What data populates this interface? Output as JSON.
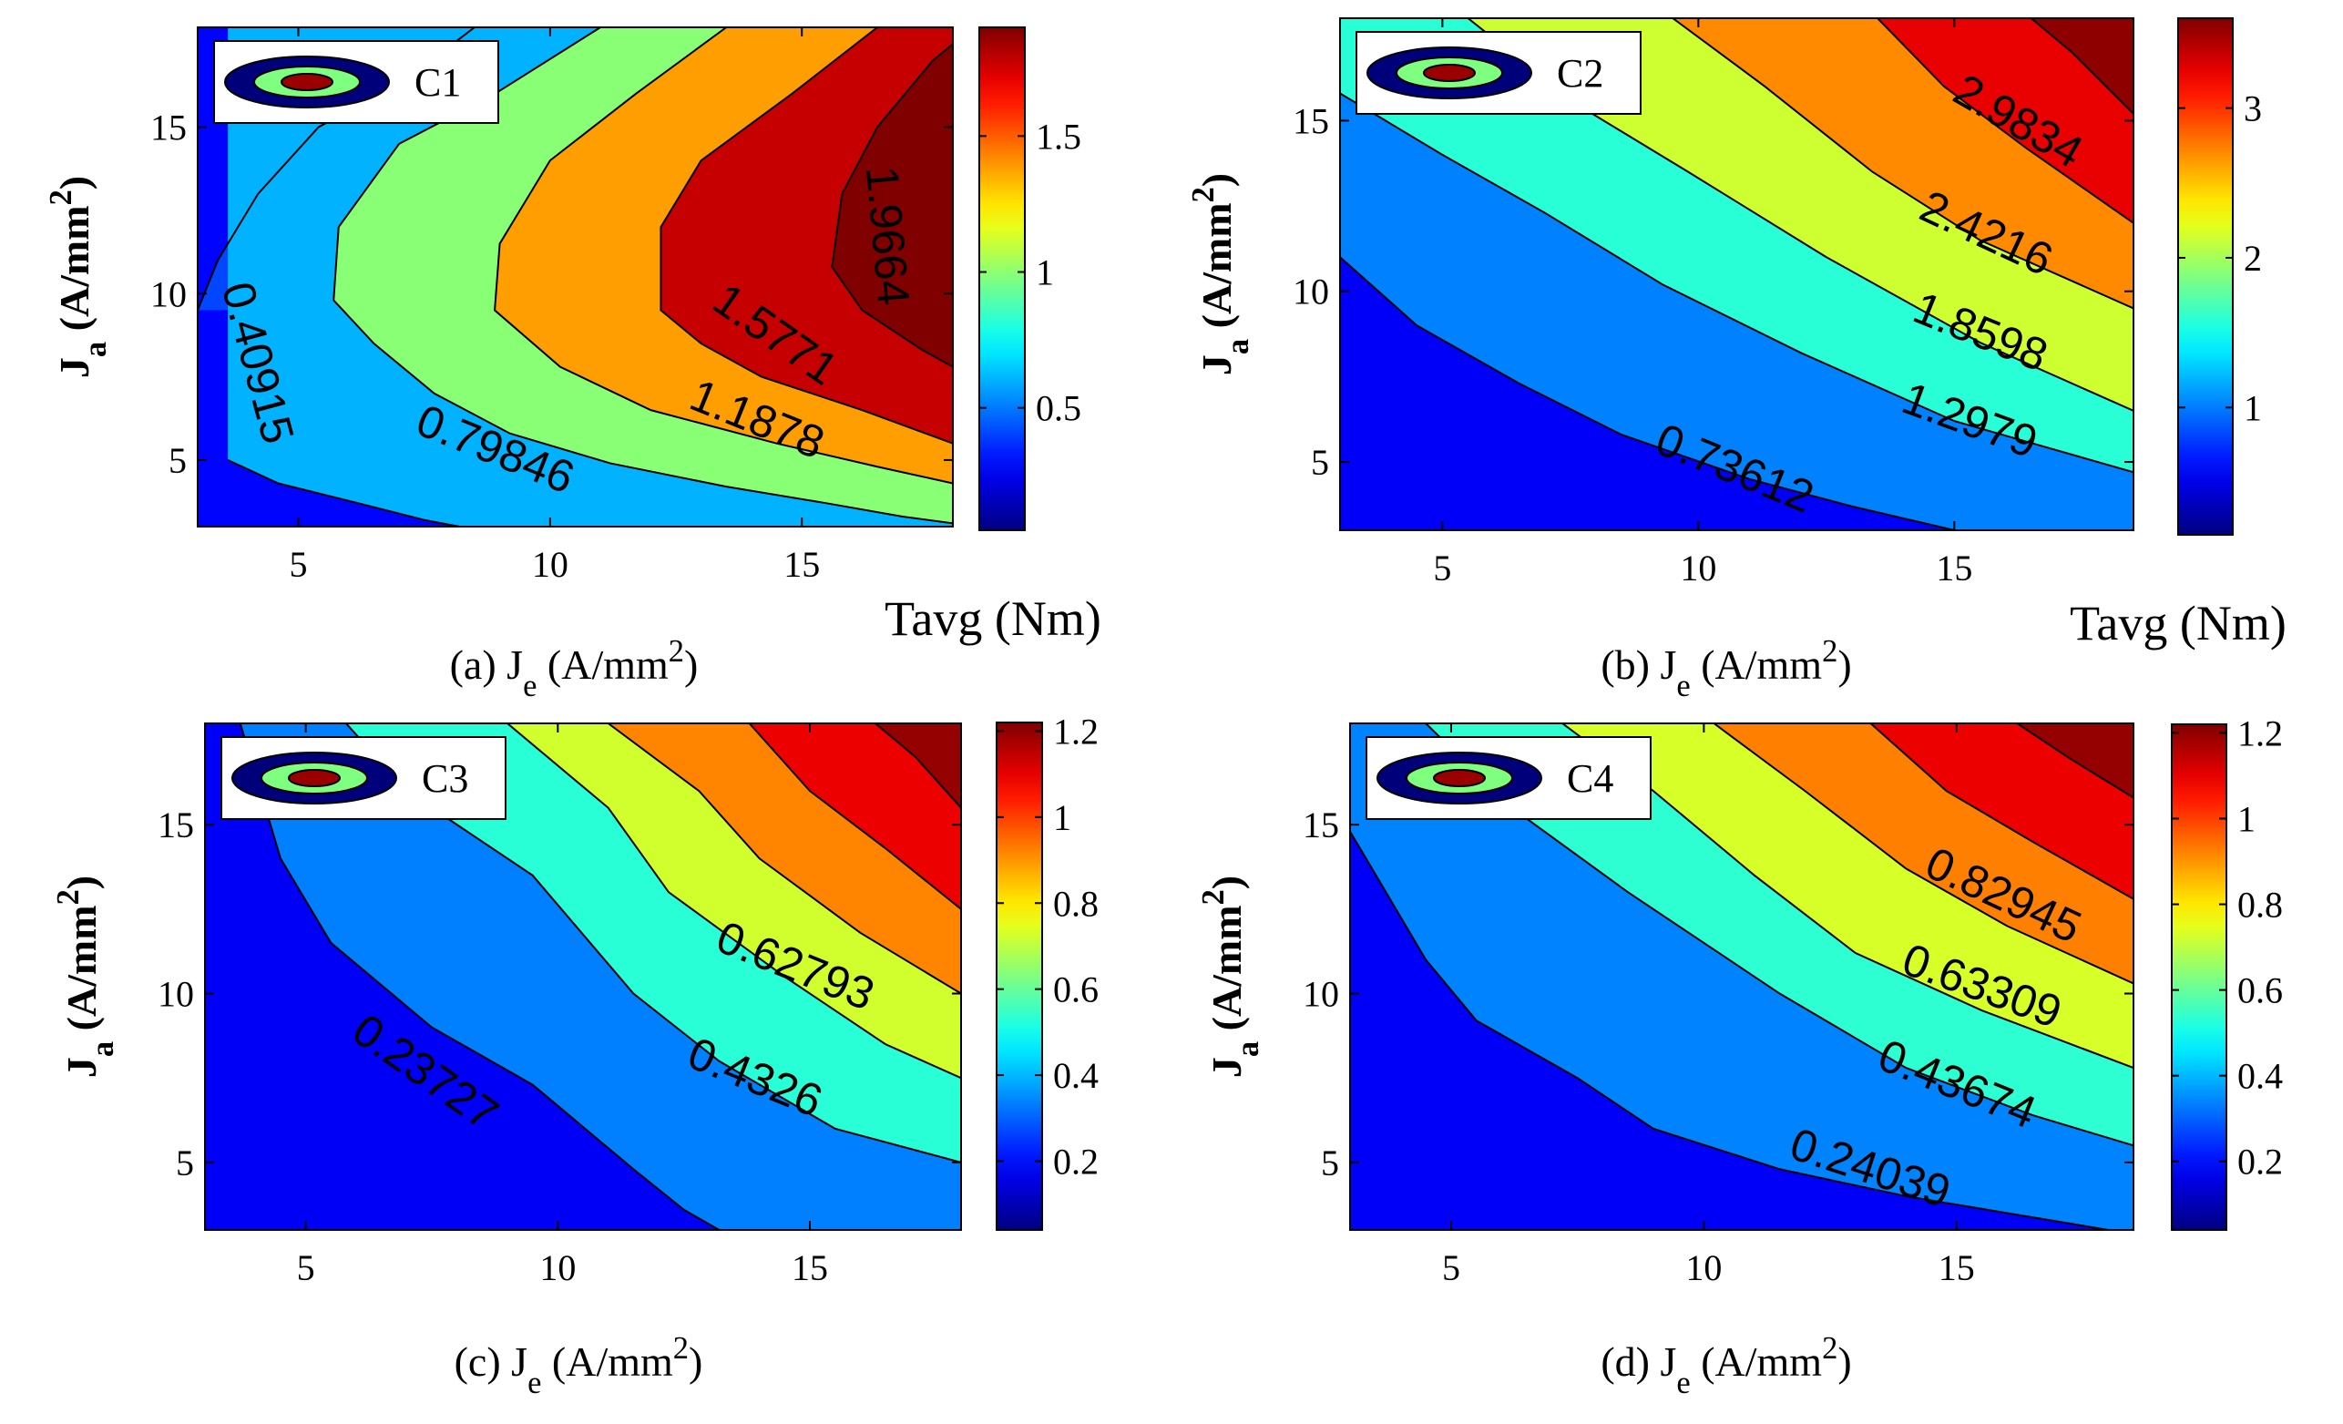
{
  "shared_title": "Tavg (Nm)",
  "chart_data": [
    {
      "type": "contour",
      "panel": "(a)",
      "caption": "(a) J_e (A/mm^2)",
      "xlabel": "J_e (A/mm^2)",
      "ylabel": "J_a (A/mm^2)",
      "colorbar_title": "Tavg (Nm)",
      "xlim": [
        3,
        18
      ],
      "ylim": [
        3,
        18
      ],
      "xticks": [
        5,
        10,
        15
      ],
      "yticks": [
        5,
        10,
        15
      ],
      "clim": [
        0.05,
        1.9
      ],
      "colorbar_ticks": [
        0.5,
        1,
        1.5
      ],
      "legend": "C1",
      "levels": [
        0.40915,
        0.79846,
        1.1878,
        1.5771,
        1.9664
      ],
      "contour_labels": [
        "0.40915",
        "0.79846",
        "1.1878",
        "1.5771",
        "1.9664"
      ],
      "contours": [
        {
          "level": 0.40915,
          "points": [
            [
              8.5,
              18
            ],
            [
              7.2,
              16.5
            ],
            [
              5.4,
              15
            ],
            [
              4.2,
              13
            ],
            [
              3.4,
              11
            ],
            [
              3,
              9.5
            ]
          ]
        },
        {
          "level": 0.40915,
          "points": [
            [
              3.6,
              5
            ],
            [
              4.6,
              4.3
            ],
            [
              6.2,
              3.7
            ],
            [
              7.5,
              3.2
            ],
            [
              8.2,
              3
            ]
          ]
        },
        {
          "level": 0.79846,
          "points": [
            [
              11,
              18
            ],
            [
              8.9,
              16
            ],
            [
              7,
              14.5
            ],
            [
              5.8,
              12
            ],
            [
              5.7,
              9.8
            ],
            [
              6.5,
              8.5
            ],
            [
              7.7,
              7
            ],
            [
              9.2,
              5.8
            ],
            [
              11.2,
              4.9
            ],
            [
              13.5,
              4.2
            ],
            [
              15.5,
              3.7
            ],
            [
              17,
              3.3
            ],
            [
              18,
              3.1
            ]
          ]
        },
        {
          "level": 1.1878,
          "points": [
            [
              13.5,
              18
            ],
            [
              11.7,
              16
            ],
            [
              10,
              14
            ],
            [
              9,
              11.5
            ],
            [
              8.9,
              9.5
            ],
            [
              10.2,
              7.8
            ],
            [
              12,
              6.5
            ],
            [
              14.5,
              5.5
            ],
            [
              16.5,
              4.8
            ],
            [
              18,
              4.3
            ]
          ]
        },
        {
          "level": 1.5771,
          "points": [
            [
              16.5,
              18
            ],
            [
              14.8,
              16
            ],
            [
              13,
              14
            ],
            [
              12.2,
              12
            ],
            [
              12.2,
              9.5
            ],
            [
              13,
              8.5
            ],
            [
              14.2,
              7.5
            ],
            [
              16.2,
              6.5
            ],
            [
              18,
              5.5
            ]
          ]
        },
        {
          "level": 1.9664,
          "points": [
            [
              18,
              17.5
            ],
            [
              17.6,
              17
            ],
            [
              16.5,
              15
            ],
            [
              15.8,
              13
            ],
            [
              15.6,
              10.8
            ],
            [
              16.2,
              9.5
            ],
            [
              17.4,
              8.3
            ],
            [
              18,
              7.8
            ]
          ]
        }
      ]
    },
    {
      "type": "contour",
      "panel": "(b)",
      "caption": "(b) J_e (A/mm^2)",
      "xlabel": "J_e (A/mm^2)",
      "ylabel": "J_a (A/mm^2)",
      "colorbar_title": "Tavg (Nm)",
      "xlim": [
        3,
        18.5
      ],
      "ylim": [
        3,
        18
      ],
      "xticks": [
        5,
        10,
        15
      ],
      "yticks": [
        5,
        10,
        15
      ],
      "clim": [
        0.15,
        3.6
      ],
      "colorbar_ticks": [
        1,
        2,
        3
      ],
      "legend": "C2",
      "levels": [
        0.73612,
        1.2979,
        1.8598,
        2.4216,
        2.9834
      ],
      "contour_labels": [
        "0.73612",
        "1.2979",
        "1.8598",
        "2.4216",
        "2.9834"
      ],
      "contours": [
        {
          "level": 0.73612,
          "points": [
            [
              3,
              11
            ],
            [
              4.5,
              9
            ],
            [
              6.5,
              7.3
            ],
            [
              8.5,
              5.8
            ],
            [
              11,
              4.5
            ],
            [
              13,
              3.7
            ],
            [
              15,
              3
            ]
          ]
        },
        {
          "level": 1.2979,
          "points": [
            [
              3,
              15.8
            ],
            [
              5,
              14
            ],
            [
              7,
              12.3
            ],
            [
              9.3,
              10.2
            ],
            [
              12,
              8.2
            ],
            [
              15,
              6.2
            ],
            [
              18.5,
              4.7
            ]
          ]
        },
        {
          "level": 1.8598,
          "points": [
            [
              5.5,
              18
            ],
            [
              7.6,
              15.5
            ],
            [
              9.8,
              13.5
            ],
            [
              12.5,
              11
            ],
            [
              15.5,
              8.5
            ],
            [
              18.5,
              6.5
            ]
          ]
        },
        {
          "level": 2.4216,
          "points": [
            [
              9.5,
              18
            ],
            [
              11.3,
              16
            ],
            [
              13.4,
              13.5
            ],
            [
              15.5,
              11.5
            ],
            [
              18.5,
              9.5
            ]
          ]
        },
        {
          "level": 2.9834,
          "points": [
            [
              13.5,
              18
            ],
            [
              14.8,
              16
            ],
            [
              16.4,
              14.2
            ],
            [
              18.5,
              12
            ]
          ]
        },
        {
          "level": 3.5,
          "points": [
            [
              16.5,
              18
            ],
            [
              17.3,
              17
            ],
            [
              18.5,
              15.2
            ]
          ]
        }
      ]
    },
    {
      "type": "contour",
      "panel": "(c)",
      "caption": "(c) J_e (A/mm^2)",
      "xlabel": "J_e (A/mm^2)",
      "ylabel": "J_a (A/mm^2)",
      "colorbar_title": "",
      "xlim": [
        3,
        18
      ],
      "ylim": [
        3,
        18
      ],
      "xticks": [
        5,
        10,
        15
      ],
      "yticks": [
        5,
        10,
        15
      ],
      "clim": [
        0.04,
        1.22
      ],
      "colorbar_ticks": [
        0.2,
        0.4,
        0.6,
        0.8,
        1,
        1.2
      ],
      "legend": "C3",
      "levels": [
        0.23727,
        0.4326,
        0.62793,
        0.82,
        1.02,
        1.17
      ],
      "contour_labels": [
        "0.23727",
        "0.4326",
        "0.62793"
      ],
      "contours": [
        {
          "level": 0.23727,
          "points": [
            [
              3.7,
              18
            ],
            [
              4.5,
              14
            ],
            [
              5.5,
              11.5
            ],
            [
              7.5,
              9
            ],
            [
              9.5,
              7.3
            ],
            [
              11.5,
              4.8
            ],
            [
              12.5,
              3.6
            ],
            [
              13.2,
              3
            ]
          ]
        },
        {
          "level": 0.4326,
          "points": [
            [
              5.8,
              18
            ],
            [
              7,
              16
            ],
            [
              9.5,
              13.5
            ],
            [
              11.5,
              10
            ],
            [
              13.2,
              8
            ],
            [
              15.5,
              6
            ],
            [
              18,
              5
            ]
          ]
        },
        {
          "level": 0.62793,
          "points": [
            [
              9,
              18
            ],
            [
              11,
              15.5
            ],
            [
              12.2,
              13
            ],
            [
              14.5,
              10.5
            ],
            [
              16.5,
              8.5
            ],
            [
              18,
              7.5
            ]
          ]
        },
        {
          "level": 0.82,
          "points": [
            [
              11,
              18
            ],
            [
              12.8,
              16
            ],
            [
              14,
              14
            ],
            [
              16,
              11.8
            ],
            [
              18,
              10
            ]
          ]
        },
        {
          "level": 1.02,
          "points": [
            [
              13.8,
              18
            ],
            [
              15,
              16
            ],
            [
              16.5,
              14.3
            ],
            [
              18,
              12.5
            ]
          ]
        },
        {
          "level": 1.17,
          "points": [
            [
              16.3,
              18
            ],
            [
              17.1,
              17
            ],
            [
              18,
              15.5
            ]
          ]
        }
      ]
    },
    {
      "type": "contour",
      "panel": "(d)",
      "caption": "(d) J_e (A/mm^2)",
      "xlabel": "J_e (A/mm^2)",
      "ylabel": "J_a (A/mm^2)",
      "colorbar_title": "",
      "xlim": [
        3,
        18.5
      ],
      "ylim": [
        3,
        18
      ],
      "xticks": [
        5,
        10,
        15
      ],
      "yticks": [
        5,
        10,
        15
      ],
      "clim": [
        0.04,
        1.22
      ],
      "colorbar_ticks": [
        0.2,
        0.4,
        0.6,
        0.8,
        1,
        1.2
      ],
      "legend": "C4",
      "levels": [
        0.24039,
        0.43674,
        0.63309,
        0.82945,
        1.02,
        1.17
      ],
      "contour_labels": [
        "0.24039",
        "0.43674",
        "0.63309",
        "0.82945"
      ],
      "contours": [
        {
          "level": 0.24039,
          "points": [
            [
              3,
              14.8
            ],
            [
              4.5,
              11
            ],
            [
              5.5,
              9.2
            ],
            [
              7.5,
              7.5
            ],
            [
              9,
              6
            ],
            [
              11.5,
              4.8
            ],
            [
              14,
              4
            ],
            [
              16,
              3.5
            ],
            [
              18,
              3
            ]
          ]
        },
        {
          "level": 0.43674,
          "points": [
            [
              4.5,
              18
            ],
            [
              6.2,
              15.5
            ],
            [
              8.5,
              13
            ],
            [
              11.5,
              10
            ],
            [
              14,
              7.8
            ],
            [
              16.5,
              6.4
            ],
            [
              18.5,
              5.5
            ]
          ]
        },
        {
          "level": 0.63309,
          "points": [
            [
              7.2,
              18
            ],
            [
              9,
              16
            ],
            [
              11,
              13.5
            ],
            [
              13,
              11.2
            ],
            [
              15.5,
              9.5
            ],
            [
              18.5,
              7.8
            ]
          ]
        },
        {
          "level": 0.82945,
          "points": [
            [
              10.2,
              18
            ],
            [
              12,
              16
            ],
            [
              14,
              13.7
            ],
            [
              16,
              12
            ],
            [
              18.5,
              10.3
            ]
          ]
        },
        {
          "level": 1.02,
          "points": [
            [
              13.3,
              18
            ],
            [
              14.8,
              16
            ],
            [
              16.5,
              14.5
            ],
            [
              18.5,
              12.8
            ]
          ]
        },
        {
          "level": 1.17,
          "points": [
            [
              16.2,
              18
            ],
            [
              17.2,
              17
            ],
            [
              18.5,
              15.8
            ]
          ]
        }
      ]
    }
  ]
}
